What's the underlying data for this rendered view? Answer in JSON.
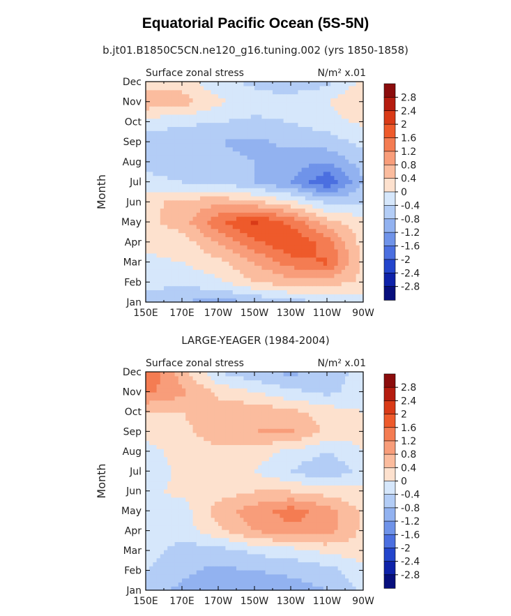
{
  "figure": {
    "title": "Equatorial Pacific Ocean (5S-5N)",
    "top_panel_title": "b.jt01.B1850C5CN.ne120_g16.tuning.002 (yrs 1850-1858)",
    "bottom_panel_title": "LARGE-YEAGER (1984-2004)"
  },
  "colorbar": {
    "levels": [
      "2.8",
      "2.4",
      "2",
      "1.6",
      "1.2",
      "0.8",
      "0.4",
      "0",
      "-0.4",
      "-0.8",
      "-1.2",
      "-1.6",
      "-2",
      "-2.4",
      "-2.8"
    ],
    "colors": [
      "#8b0c0c",
      "#b51c0f",
      "#d93a17",
      "#ee5a2b",
      "#f47c52",
      "#f89d7a",
      "#fbbc9e",
      "#fde1ce",
      "#d6e7fb",
      "#b3cdf6",
      "#92b2f0",
      "#6f93e9",
      "#4b6fe0",
      "#2345cc",
      "#0e22a9",
      "#070f7d"
    ]
  },
  "chart_data": [
    {
      "type": "heatmap",
      "plot_label": "Surface zonal stress",
      "units_label": "N/m² x.01",
      "xlabel": "",
      "ylabel": "Month",
      "x": [
        150,
        170,
        190,
        210,
        230,
        250,
        270
      ],
      "xticklabels": [
        "150E",
        "170E",
        "170W",
        "150W",
        "130W",
        "110W",
        "90W"
      ],
      "xlim": [
        150,
        270
      ],
      "y": [
        1,
        2,
        3,
        4,
        5,
        6,
        7,
        8,
        9,
        10,
        11,
        12
      ],
      "yticklabels": [
        "Jan",
        "Feb",
        "Mar",
        "Apr",
        "May",
        "Jun",
        "Jul",
        "Aug",
        "Sep",
        "Oct",
        "Nov",
        "Dec"
      ],
      "ylim": [
        1,
        12
      ],
      "values": [
        [
          -0.5,
          -0.8,
          -1.0,
          -0.8,
          -0.6,
          -0.4,
          -0.3
        ],
        [
          -0.3,
          -0.3,
          -0.1,
          0.4,
          0.6,
          0.6,
          0.3
        ],
        [
          -0.1,
          0.0,
          0.3,
          0.8,
          1.4,
          1.7,
          0.3
        ],
        [
          0.1,
          0.2,
          0.8,
          1.5,
          2.0,
          1.4,
          0.2
        ],
        [
          0.3,
          0.6,
          1.5,
          2.1,
          1.5,
          0.6,
          0.1
        ],
        [
          0.3,
          0.5,
          0.7,
          0.5,
          0.1,
          -0.5,
          -0.4
        ],
        [
          -0.3,
          -0.4,
          -0.5,
          -0.8,
          -1.2,
          -2.0,
          -0.8
        ],
        [
          -0.5,
          -0.6,
          -0.7,
          -0.8,
          -1.0,
          -1.2,
          -0.6
        ],
        [
          -0.6,
          -0.7,
          -0.8,
          -0.9,
          -0.7,
          -0.6,
          -0.3
        ],
        [
          -0.2,
          -0.3,
          -0.4,
          -0.5,
          -0.4,
          -0.2,
          0.1
        ],
        [
          0.7,
          0.6,
          0.1,
          -0.2,
          -0.1,
          0.0,
          0.4
        ],
        [
          0.2,
          0.2,
          -0.3,
          -0.5,
          -0.8,
          -0.5,
          0.1
        ]
      ]
    },
    {
      "type": "heatmap",
      "plot_label": "Surface zonal stress",
      "units_label": "N/m² x.01",
      "xlabel": "",
      "ylabel": "Month",
      "x": [
        150,
        170,
        190,
        210,
        230,
        250,
        270
      ],
      "xticklabels": [
        "150E",
        "170E",
        "170W",
        "150W",
        "130W",
        "110W",
        "90W"
      ],
      "xlim": [
        150,
        270
      ],
      "y": [
        1,
        2,
        3,
        4,
        5,
        6,
        7,
        8,
        9,
        10,
        11,
        12
      ],
      "yticklabels": [
        "Jan",
        "Feb",
        "Mar",
        "Apr",
        "May",
        "Jun",
        "Jul",
        "Aug",
        "Sep",
        "Oct",
        "Nov",
        "Dec"
      ],
      "ylim": [
        1,
        12
      ],
      "values": [
        [
          -0.6,
          -0.9,
          -1.1,
          -1.2,
          -1.0,
          -0.8,
          -0.3
        ],
        [
          -0.4,
          -0.7,
          -0.9,
          -0.8,
          -0.7,
          -0.6,
          -0.1
        ],
        [
          -0.2,
          -0.6,
          -0.6,
          -0.3,
          -0.2,
          0.1,
          0.2
        ],
        [
          -0.1,
          -0.2,
          0.3,
          0.8,
          1.1,
          1.0,
          0.3
        ],
        [
          -0.1,
          -0.2,
          0.6,
          1.0,
          1.4,
          1.0,
          0.3
        ],
        [
          -0.1,
          0.1,
          0.2,
          0.4,
          0.4,
          0.2,
          0.1
        ],
        [
          -0.3,
          0.1,
          0.2,
          0.0,
          -0.4,
          -0.8,
          -0.2
        ],
        [
          -0.2,
          0.2,
          0.3,
          0.2,
          -0.1,
          -0.4,
          0.0
        ],
        [
          0.2,
          0.3,
          0.6,
          0.8,
          0.9,
          0.3,
          0.1
        ],
        [
          0.4,
          0.4,
          0.6,
          0.7,
          0.5,
          0.2,
          0.0
        ],
        [
          1.3,
          0.9,
          0.3,
          0.0,
          -0.3,
          -0.5,
          -0.2
        ],
        [
          1.6,
          0.6,
          -0.4,
          -0.7,
          -0.9,
          -0.7,
          -0.2
        ]
      ]
    }
  ]
}
